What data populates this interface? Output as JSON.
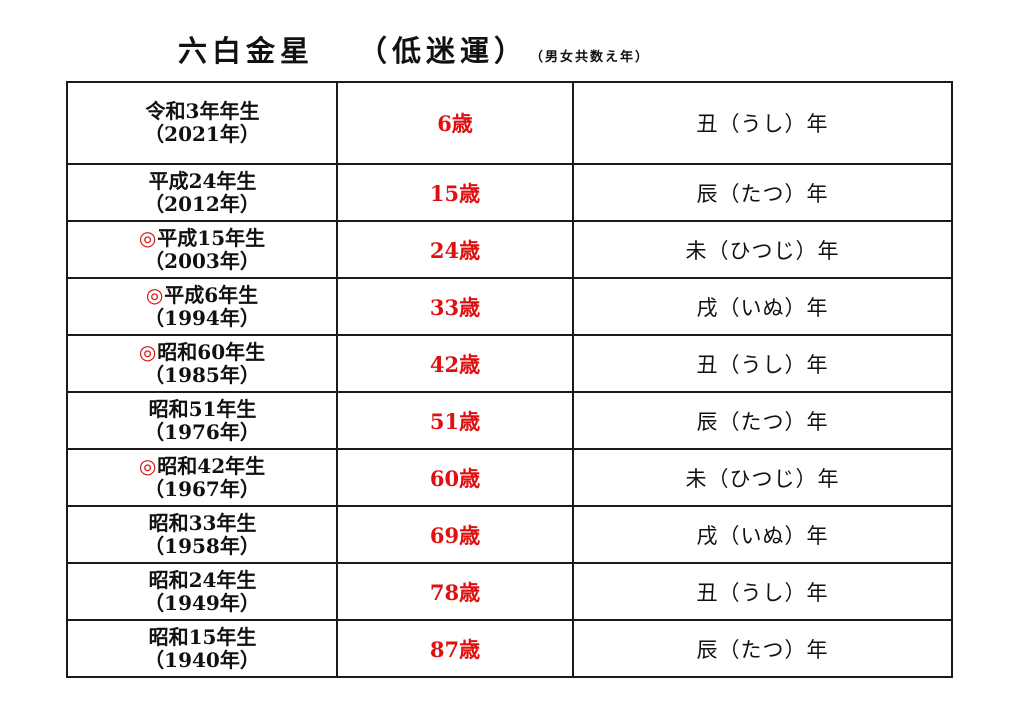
{
  "title": {
    "main": "六白金星",
    "sub": "（低迷運）",
    "note": "（男女共数え年）"
  },
  "rows": [
    {
      "mark": "",
      "birth_era": "令和3年年生",
      "birth_year": "（2021年）",
      "age": "6歳",
      "zodiac": "丑（うし）年"
    },
    {
      "mark": "",
      "birth_era": "平成24年生",
      "birth_year": "（2012年）",
      "age": "15歳",
      "zodiac": "辰（たつ）年"
    },
    {
      "mark": "◎",
      "birth_era": "平成15年生",
      "birth_year": "（2003年）",
      "age": "24歳",
      "zodiac": "未（ひつじ）年"
    },
    {
      "mark": "◎",
      "birth_era": "平成6年生",
      "birth_year": "（1994年）",
      "age": "33歳",
      "zodiac": "戌（いぬ）年"
    },
    {
      "mark": "◎",
      "birth_era": "昭和60年生",
      "birth_year": "（1985年）",
      "age": "42歳",
      "zodiac": "丑（うし）年"
    },
    {
      "mark": "",
      "birth_era": "昭和51年生",
      "birth_year": "（1976年）",
      "age": "51歳",
      "zodiac": "辰（たつ）年"
    },
    {
      "mark": "◎",
      "birth_era": "昭和42年生",
      "birth_year": "（1967年）",
      "age": "60歳",
      "zodiac": "未（ひつじ）年"
    },
    {
      "mark": "",
      "birth_era": "昭和33年生",
      "birth_year": "（1958年）",
      "age": "69歳",
      "zodiac": "戌（いぬ）年"
    },
    {
      "mark": "",
      "birth_era": "昭和24年生",
      "birth_year": "（1949年）",
      "age": "78歳",
      "zodiac": "丑（うし）年"
    },
    {
      "mark": "",
      "birth_era": "昭和15年生",
      "birth_year": "（1940年）",
      "age": "87歳",
      "zodiac": "辰（たつ）年"
    }
  ],
  "colors": {
    "accent_red": "#e01010",
    "border": "#1a1a1a"
  }
}
